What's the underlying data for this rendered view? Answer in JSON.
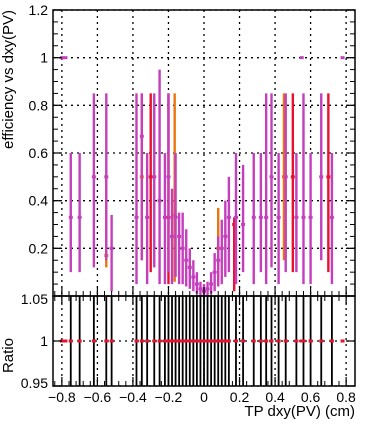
{
  "chart_data": {
    "type": "scatter",
    "top": {
      "ylabel": "efficiency vs dxy(PV)",
      "xlim": [
        -0.85,
        0.85
      ],
      "ylim": [
        0,
        1.2
      ],
      "yticks": [
        "0.2",
        "0.4",
        "0.6",
        "0.8",
        "1",
        "1.2"
      ],
      "grid": true,
      "series": [
        {
          "color": "#e8750f",
          "points": [
            {
              "x": -0.55,
              "y": 0.17,
              "lo": 0.12,
              "hi": 0.5
            },
            {
              "x": -0.35,
              "y": 0.5,
              "lo": 0.15,
              "hi": 0.85
            },
            {
              "x": -0.165,
              "y": 0.34,
              "lo": 0.06,
              "hi": 0.85
            },
            {
              "x": 0.08,
              "y": 0.2,
              "lo": 0.05,
              "hi": 0.37
            },
            {
              "x": 0.45,
              "y": 0.5,
              "lo": 0.15,
              "hi": 0.85
            }
          ]
        },
        {
          "color": "#e8112e",
          "points": [
            {
              "x": -0.3,
              "y": 0.5,
              "lo": 0.1,
              "hi": 0.85
            },
            {
              "x": -0.2,
              "y": 0.33,
              "lo": 0.05,
              "hi": 0.85
            },
            {
              "x": 0.17,
              "y": 0.3,
              "lo": 0.02,
              "hi": 0.33
            },
            {
              "x": 0.5,
              "y": 0.5,
              "lo": 0.1,
              "hi": 0.85
            },
            {
              "x": 0.7,
              "y": 0.5,
              "lo": 0.1,
              "hi": 0.85
            }
          ]
        },
        {
          "color": "#c43fbd",
          "points": [
            {
              "x": -0.8,
              "y": 1.0,
              "lo": 1.0,
              "hi": 1.0
            },
            {
              "x": -0.78,
              "y": 1.0,
              "lo": 1.0,
              "hi": 1.0
            },
            {
              "x": -0.75,
              "y": 0.33,
              "lo": 0.1,
              "hi": 0.6
            },
            {
              "x": -0.7,
              "y": 0.33,
              "lo": 0.1,
              "hi": 0.6
            },
            {
              "x": -0.62,
              "y": 0.5,
              "lo": 0.12,
              "hi": 0.85
            },
            {
              "x": -0.55,
              "y": 0.5,
              "lo": 0.15,
              "hi": 0.85
            },
            {
              "x": -0.52,
              "y": 0.2,
              "lo": 0.02,
              "hi": 0.34
            },
            {
              "x": -0.38,
              "y": 0.33,
              "lo": 0.05,
              "hi": 0.85
            },
            {
              "x": -0.35,
              "y": 0.67,
              "lo": 0.15,
              "hi": 0.85
            },
            {
              "x": -0.32,
              "y": 0.33,
              "lo": 0.05,
              "hi": 0.6
            },
            {
              "x": -0.28,
              "y": 0.5,
              "lo": 0.12,
              "hi": 0.85
            },
            {
              "x": -0.25,
              "y": 0.4,
              "lo": 0.05,
              "hi": 0.95
            },
            {
              "x": -0.22,
              "y": 0.33,
              "lo": 0.05,
              "hi": 0.6
            },
            {
              "x": -0.2,
              "y": 0.5,
              "lo": 0.1,
              "hi": 0.85
            },
            {
              "x": -0.18,
              "y": 0.25,
              "lo": 0.05,
              "hi": 0.45
            },
            {
              "x": -0.16,
              "y": 0.33,
              "lo": 0.08,
              "hi": 0.6
            },
            {
              "x": -0.14,
              "y": 0.25,
              "lo": 0.05,
              "hi": 0.35
            },
            {
              "x": -0.12,
              "y": 0.2,
              "lo": 0.05,
              "hi": 0.35
            },
            {
              "x": -0.1,
              "y": 0.15,
              "lo": 0.04,
              "hi": 0.28
            },
            {
              "x": -0.08,
              "y": 0.12,
              "lo": 0.03,
              "hi": 0.2
            },
            {
              "x": -0.06,
              "y": 0.08,
              "lo": 0.02,
              "hi": 0.15
            },
            {
              "x": -0.04,
              "y": 0.05,
              "lo": 0.01,
              "hi": 0.1
            },
            {
              "x": -0.02,
              "y": 0.03,
              "lo": 0.0,
              "hi": 0.06
            },
            {
              "x": 0.0,
              "y": 0.02,
              "lo": 0.0,
              "hi": 0.05
            },
            {
              "x": 0.02,
              "y": 0.03,
              "lo": 0.0,
              "hi": 0.06
            },
            {
              "x": 0.04,
              "y": 0.05,
              "lo": 0.01,
              "hi": 0.1
            },
            {
              "x": 0.06,
              "y": 0.1,
              "lo": 0.02,
              "hi": 0.18
            },
            {
              "x": 0.08,
              "y": 0.15,
              "lo": 0.04,
              "hi": 0.25
            },
            {
              "x": 0.1,
              "y": 0.2,
              "lo": 0.05,
              "hi": 0.32
            },
            {
              "x": 0.12,
              "y": 0.25,
              "lo": 0.08,
              "hi": 0.4
            },
            {
              "x": 0.14,
              "y": 0.33,
              "lo": 0.1,
              "hi": 0.5
            },
            {
              "x": 0.18,
              "y": 0.33,
              "lo": 0.05,
              "hi": 0.6
            },
            {
              "x": 0.22,
              "y": 0.3,
              "lo": 0.1,
              "hi": 0.55
            },
            {
              "x": 0.28,
              "y": 0.33,
              "lo": 0.05,
              "hi": 0.6
            },
            {
              "x": 0.32,
              "y": 0.33,
              "lo": 0.1,
              "hi": 0.6
            },
            {
              "x": 0.35,
              "y": 0.33,
              "lo": 0.05,
              "hi": 0.85
            },
            {
              "x": 0.38,
              "y": 0.5,
              "lo": 0.12,
              "hi": 0.85
            },
            {
              "x": 0.42,
              "y": 0.33,
              "lo": 0.05,
              "hi": 0.6
            },
            {
              "x": 0.46,
              "y": 0.5,
              "lo": 0.1,
              "hi": 0.85
            },
            {
              "x": 0.52,
              "y": 0.33,
              "lo": 0.1,
              "hi": 0.6
            },
            {
              "x": 0.55,
              "y": 1.0,
              "lo": 1.0,
              "hi": 1.0
            },
            {
              "x": 0.56,
              "y": 0.33,
              "lo": 0.05,
              "hi": 0.85
            },
            {
              "x": 0.6,
              "y": 0.33,
              "lo": 0.05,
              "hi": 0.6
            },
            {
              "x": 0.66,
              "y": 0.5,
              "lo": 0.15,
              "hi": 0.85
            },
            {
              "x": 0.72,
              "y": 0.33,
              "lo": 0.05,
              "hi": 0.6
            },
            {
              "x": 0.78,
              "y": 1.0,
              "lo": 1.0,
              "hi": 1.0
            }
          ]
        }
      ]
    },
    "bottom": {
      "xlabel": "TP dxy(PV) (cm)",
      "ylabel": "Ratio",
      "xlim": [
        -0.85,
        0.85
      ],
      "ylim": [
        0.95,
        1.05
      ],
      "xticks": [
        "−0.8",
        "−0.6",
        "−0.4",
        "−0.2",
        "0",
        "0.2",
        "0.4",
        "0.6",
        "0.8"
      ],
      "yticks": [
        "0.95",
        "1",
        "1.05"
      ],
      "grid": true,
      "ratio_value": 1.0
    }
  }
}
